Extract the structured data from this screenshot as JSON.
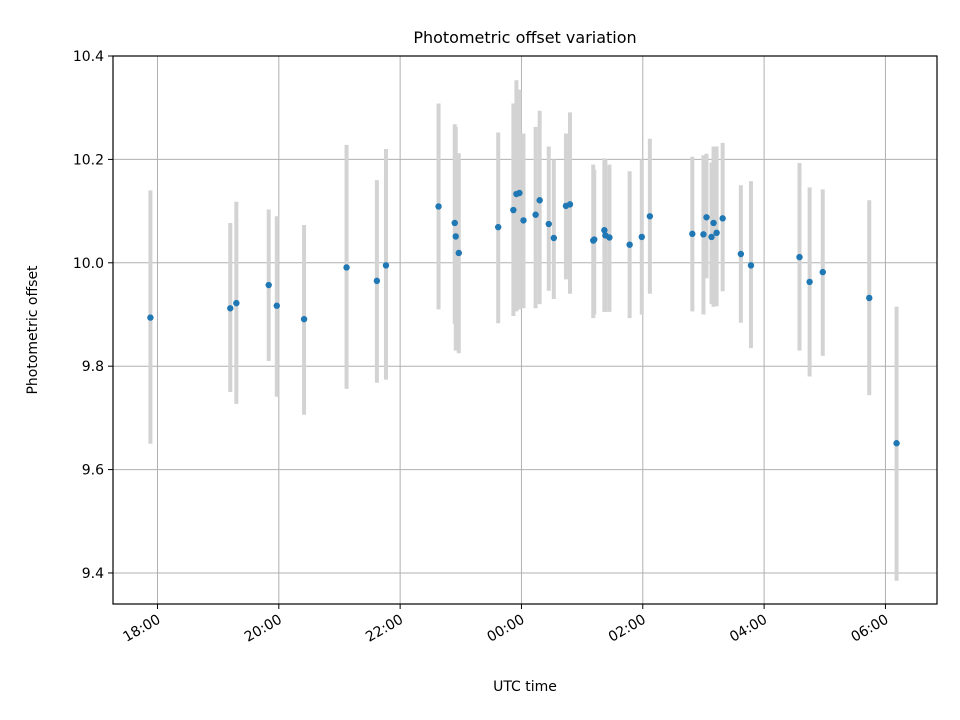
{
  "chart_data": {
    "type": "scatter",
    "title": "Photometric offset variation",
    "xlabel": "UTC time",
    "ylabel": "Photometric offset",
    "xlim": [
      "17:16",
      "06:51"
    ],
    "ylim": [
      9.34,
      10.4
    ],
    "grid": true,
    "x_ticks": [
      "18:00",
      "20:00",
      "22:00",
      "00:00",
      "02:00",
      "04:00",
      "06:00"
    ],
    "y_ticks": [
      "9.4",
      "9.6",
      "9.8",
      "10.0",
      "10.2",
      "10.4"
    ],
    "colors": {
      "marker": "#1f77b4",
      "errorbar": "#d3d3d3",
      "grid": "#b0b0b0"
    },
    "series": [
      {
        "x": [
          "17:53",
          "19:12",
          "19:18",
          "19:50",
          "19:58",
          "20:25",
          "21:07",
          "21:37",
          "21:46",
          "22:38",
          "22:54",
          "22:55",
          "22:58",
          "23:37",
          "23:52",
          "23:55",
          "23:58",
          "00:02",
          "00:14",
          "00:18",
          "00:27",
          "00:32",
          "00:44",
          "00:48",
          "01:11",
          "01:12",
          "01:22",
          "01:23",
          "01:27",
          "01:47",
          "01:59",
          "02:07",
          "02:49",
          "03:00",
          "03:03",
          "03:08",
          "03:10",
          "03:13",
          "03:19",
          "03:37",
          "03:47",
          "04:35",
          "04:45",
          "04:58",
          "05:44",
          "06:11"
        ],
        "y": [
          9.894,
          9.912,
          9.922,
          9.957,
          9.917,
          9.891,
          9.991,
          9.965,
          9.995,
          10.109,
          10.077,
          10.051,
          10.019,
          10.069,
          10.102,
          10.133,
          10.135,
          10.082,
          10.093,
          10.121,
          10.075,
          10.048,
          10.11,
          10.113,
          10.043,
          10.045,
          10.063,
          10.053,
          10.049,
          10.035,
          10.05,
          10.09,
          10.056,
          10.055,
          10.088,
          10.05,
          10.077,
          10.058,
          10.086,
          10.017,
          9.995,
          10.011,
          9.963,
          9.982,
          9.932,
          9.651
        ],
        "err_low": [
          9.65,
          9.75,
          9.727,
          9.81,
          9.741,
          9.706,
          9.756,
          9.768,
          9.774,
          9.91,
          9.882,
          9.83,
          9.825,
          9.883,
          9.897,
          9.906,
          9.91,
          9.912,
          9.912,
          9.92,
          9.946,
          9.93,
          9.968,
          9.94,
          9.893,
          9.9,
          9.905,
          9.905,
          9.905,
          9.893,
          9.9,
          9.94,
          9.906,
          9.9,
          9.97,
          9.92,
          9.915,
          9.916,
          9.945,
          9.884,
          9.835,
          9.83,
          9.78,
          9.82,
          9.744,
          9.385
        ],
        "err_high": [
          10.14,
          10.077,
          10.118,
          10.103,
          10.09,
          10.073,
          10.228,
          10.16,
          10.22,
          10.308,
          10.268,
          10.263,
          10.212,
          10.252,
          10.308,
          10.353,
          10.335,
          10.25,
          10.263,
          10.294,
          10.225,
          10.2,
          10.25,
          10.291,
          10.19,
          10.18,
          10.202,
          10.2,
          10.19,
          10.177,
          10.2,
          10.24,
          10.205,
          10.208,
          10.211,
          10.194,
          10.225,
          10.225,
          10.232,
          10.15,
          10.158,
          10.193,
          10.146,
          10.142,
          10.121,
          9.915
        ]
      }
    ]
  }
}
